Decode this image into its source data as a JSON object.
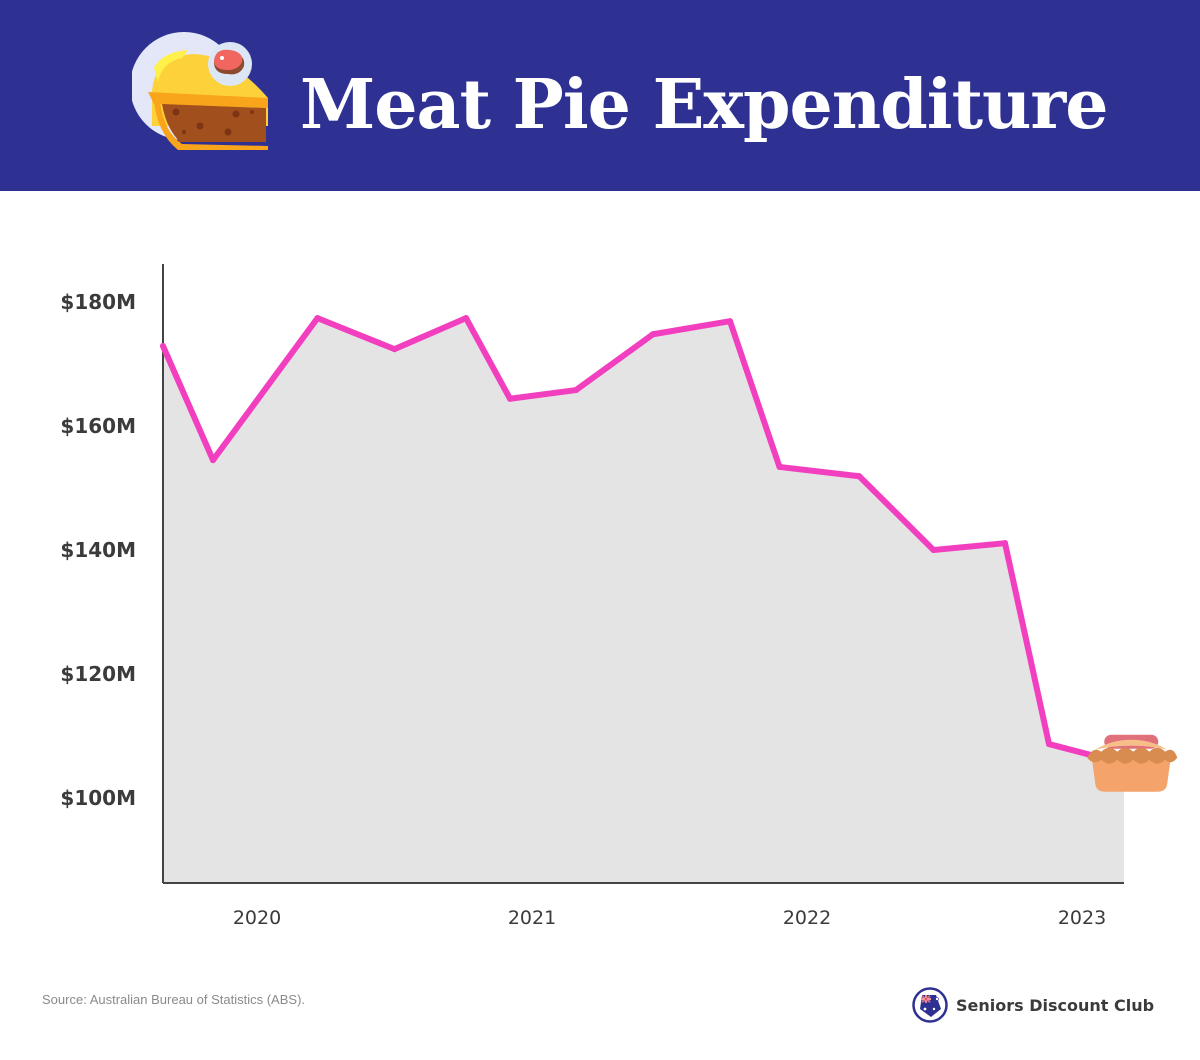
{
  "header": {
    "title": "Meat Pie Expenditure",
    "icon": "pie-slice-with-steak-icon",
    "background_color": "#2E3192"
  },
  "chart_data": {
    "type": "area",
    "title": "Meat Pie Expenditure",
    "xlabel": "",
    "ylabel": "",
    "x": [
      2019.66,
      2019.84,
      2020.22,
      2020.5,
      2020.76,
      2020.92,
      2021.16,
      2021.44,
      2021.72,
      2021.9,
      2022.19,
      2022.46,
      2022.72,
      2022.88,
      2023.07
    ],
    "series": [
      {
        "name": "Meat pie expenditure",
        "values": [
          172.9,
          154.5,
          177.4,
          172.4,
          177.4,
          164.4,
          165.8,
          174.8,
          176.9,
          153.4,
          151.9,
          140.0,
          141.1,
          108.7,
          106.5
        ],
        "line_color": "#F23FBF",
        "fill_color": "#E4E4E4"
      }
    ],
    "x_ticks": [
      2020,
      2021,
      2022,
      2023
    ],
    "x_tick_labels": [
      "2020",
      "2021",
      "2022",
      "2023"
    ],
    "y_ticks": [
      100,
      120,
      140,
      160,
      180
    ],
    "y_tick_labels": [
      "$100M",
      "$120M",
      "$140M",
      "$160M",
      "$180M"
    ],
    "xlim": [
      2019.66,
      2023.15
    ],
    "ylim": [
      86.3,
      187
    ],
    "grid": false,
    "legend": "none",
    "end_marker": "meat-pie-icon"
  },
  "footer": {
    "source": "Source: Australian Bureau of Statistics (ABS).",
    "brand_name": "Seniors Discount Club",
    "brand_logo": "australia-flag-tag-icon"
  }
}
